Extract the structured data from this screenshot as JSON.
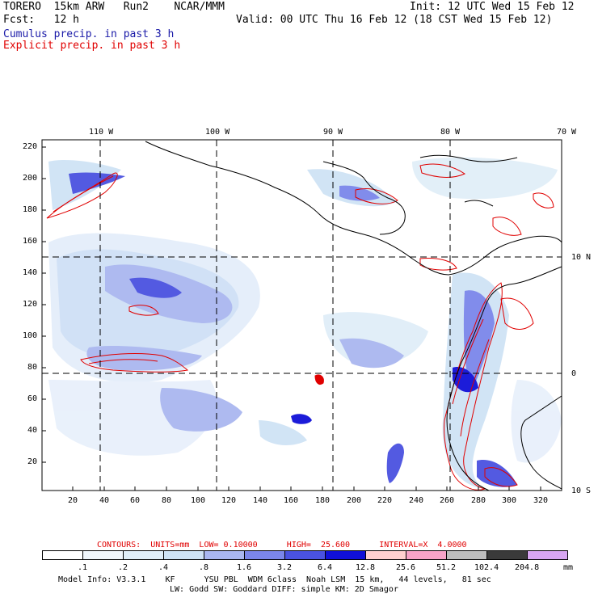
{
  "header": {
    "model": "TORERO  15km ARW   Run2    NCAR/MMM",
    "init": "Init: 12 UTC Wed 15 Feb 12",
    "fcst": "Fcst:   12 h",
    "valid": "Valid: 00 UTC Thu 16 Feb 12 (18 CST Wed 15 Feb 12)",
    "line_cumulus": "Cumulus precip. in past 3 h",
    "line_explicit": "Explicit precip. in past 3 h"
  },
  "map": {
    "lon_labels": [
      "110 W",
      "100 W",
      "90 W",
      "80 W",
      "70 W"
    ],
    "lat_labels": [
      "10 N",
      "0",
      "10 S"
    ],
    "y_ticks": [
      "220",
      "200",
      "180",
      "160",
      "140",
      "120",
      "100",
      "80",
      "60",
      "40",
      "20"
    ],
    "x_ticks": [
      "20",
      "40",
      "60",
      "80",
      "100",
      "120",
      "140",
      "160",
      "180",
      "200",
      "220",
      "240",
      "260",
      "280",
      "300",
      "320"
    ]
  },
  "contour_info": {
    "text": "CONTOURS:  UNITS=mm  LOW= 0.10000      HIGH=  25.600      INTERVAL=X  4.0000"
  },
  "legend": {
    "labels": [
      ".1",
      ".2",
      ".4",
      ".8",
      "1.6",
      "3.2",
      "6.4",
      "12.8",
      "25.6",
      "51.2",
      "102.4",
      "204.8"
    ],
    "unit": "mm",
    "colors": [
      "#ffffff",
      "#f0f6fb",
      "#e0eef8",
      "#cfe3f5",
      "#aab7f0",
      "#7b86ea",
      "#4a52e0",
      "#1010d8",
      "#ffd0d0",
      "#f7a3c8",
      "#bdbdbd",
      "#3a3a3a",
      "#d8a6f2"
    ]
  },
  "footer": {
    "line1": "Model Info: V3.3.1    KF      YSU PBL  WDM 6class  Noah LSM  15 km,   44 levels,   81 sec",
    "line2": "LW: Godd SW: Goddard DIFF: simple KM: 2D Smagor"
  },
  "colors": {
    "cumulus": "#1a1aa8",
    "explicit": "#e00000",
    "grid": "#000000"
  }
}
